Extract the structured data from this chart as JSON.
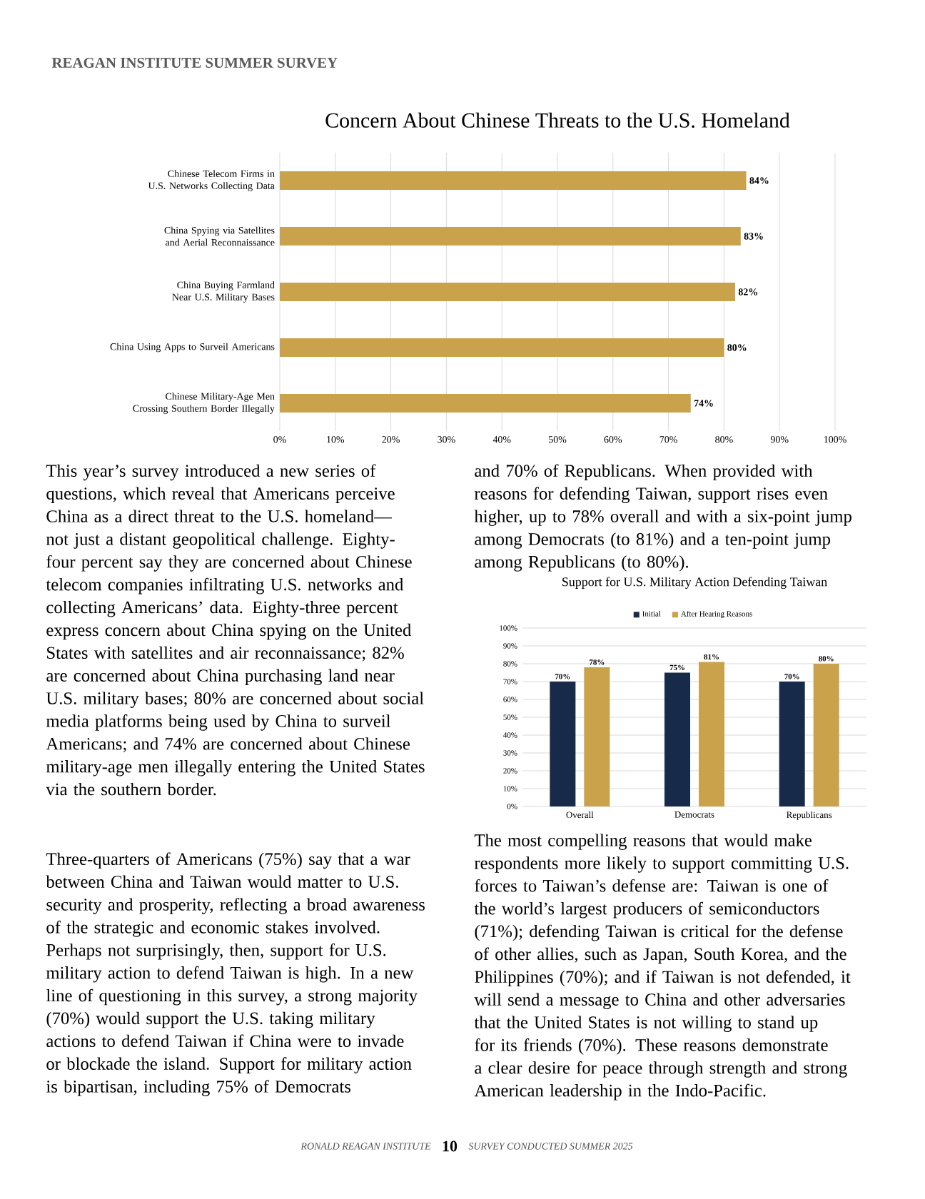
{
  "chart_data": [
    {
      "type": "bar",
      "orientation": "horizontal",
      "title": "Concern About Chinese Threats to the U.S. Homeland",
      "categories": [
        "Chinese Telecom Firms in U.S. Networks Collecting Data",
        "China Spying via Satellites and Aerial Reconnaissance",
        "China Buying Farmland Near U.S. Military Bases",
        "China Using Apps to Surveil Americans",
        "Chinese Military-Age Men Crossing Southern Border Illegally"
      ],
      "values": [
        84,
        83,
        82,
        80,
        74
      ],
      "value_labels": [
        "84%",
        "83%",
        "82%",
        "80%",
        "74%"
      ],
      "color": "#c9a24b",
      "xlim": [
        0,
        100
      ],
      "xticks": [
        {
          "value": 0,
          "label": "0%"
        },
        {
          "value": 10,
          "label": "10%"
        },
        {
          "value": 20,
          "label": "20%"
        },
        {
          "value": 30,
          "label": "30%"
        },
        {
          "value": 40,
          "label": "40%"
        },
        {
          "value": 50,
          "label": "50%"
        },
        {
          "value": 60,
          "label": "60%"
        },
        {
          "value": 70,
          "label": "70%"
        },
        {
          "value": 80,
          "label": "80%"
        },
        {
          "value": 90,
          "label": "90%"
        },
        {
          "value": 100,
          "label": "100%"
        }
      ],
      "grid": "x",
      "legend": false,
      "annotations": [
        "REAGAN INSTITUTE SUMMER SURVEY",
        "This year’s survey introduced a new series of questions, which reveal that Americans perceive China as a direct threat to the U.S. homeland—not just a distant geopolitical challenge. Eighty-four percent say they are concerned about Chinese telecom companies infiltrating U.S. networks and collecting Americans’ data. Eighty-three percent express concern about China spying on the United States with satellites and air reconnaissance; 82% are concerned about China purchasing land near U.S. military bases; 80% are concerned about social media platforms being used by China to surveil Americans; and 74% are concerned about Chinese military-age men illegally entering the United States via the southern border.",
        "Three-quarters of Americans (75%) say that a war between China and Taiwan would matter to U.S. security and prosperity, reflecting a broad awareness of the strategic and economic stakes involved. Perhaps not surprisingly, then, support for U.S. military action to defend Taiwan is high. In a new line of questioning in this survey, a strong majority (70%) would support the U.S. taking military actions to defend Taiwan if China were to invade or blockade the island. Support for military action is bipartisan, including 75% of Democrats",
        "and 70% of Republicans. When provided with reasons for defending Taiwan, support rises even higher, up to 78% overall and with a six-point jump among Democrats (to 81%) and a ten-point jump among Republicans (to 80%).",
        "The most compelling reasons that would make respondents more likely to support committing U.S. forces to Taiwan’s defense are: Taiwan is one of the world’s largest producers of semiconductors (71%); defending Taiwan is critical for the defense of other allies, such as Japan, South Korea, and the Philippines (70%); and if Taiwan is not defended, it will send a message to China and other adversaries that the United States is not willing to stand up for its friends (70%). These reasons demonstrate a clear desire for peace through strength and strong American leadership in the Indo-Pacific.",
        "RONALD REAGAN INSTITUTE",
        "10",
        "SURVEY CONDUCTED SUMMER 2025"
      ]
    },
    {
      "type": "bar",
      "title": "Support for U.S. Military Action Defending Taiwan",
      "categories": [
        "Overall",
        "Democrats",
        "Republicans"
      ],
      "series": [
        {
          "name": "Initial",
          "color": "#172a4a",
          "values": [
            70,
            75,
            70
          ],
          "value_labels": [
            "70%",
            "75%",
            "70%"
          ]
        },
        {
          "name": "After Hearing Reasons",
          "color": "#c9a24b",
          "values": [
            78,
            81,
            80
          ],
          "value_labels": [
            "78%",
            "81%",
            "80%"
          ]
        }
      ],
      "ylim": [
        0,
        100
      ],
      "yticks": [
        {
          "value": 0,
          "label": "0%"
        },
        {
          "value": 10,
          "label": "10%"
        },
        {
          "value": 20,
          "label": "20%"
        },
        {
          "value": 30,
          "label": "30%"
        },
        {
          "value": 40,
          "label": "40%"
        },
        {
          "value": 50,
          "label": "50%"
        },
        {
          "value": 60,
          "label": "60%"
        },
        {
          "value": 70,
          "label": "70%"
        },
        {
          "value": 80,
          "label": "80%"
        },
        {
          "value": 90,
          "label": "90%"
        },
        {
          "value": 100,
          "label": "100%"
        }
      ],
      "grid": "y",
      "legend": "top"
    }
  ]
}
